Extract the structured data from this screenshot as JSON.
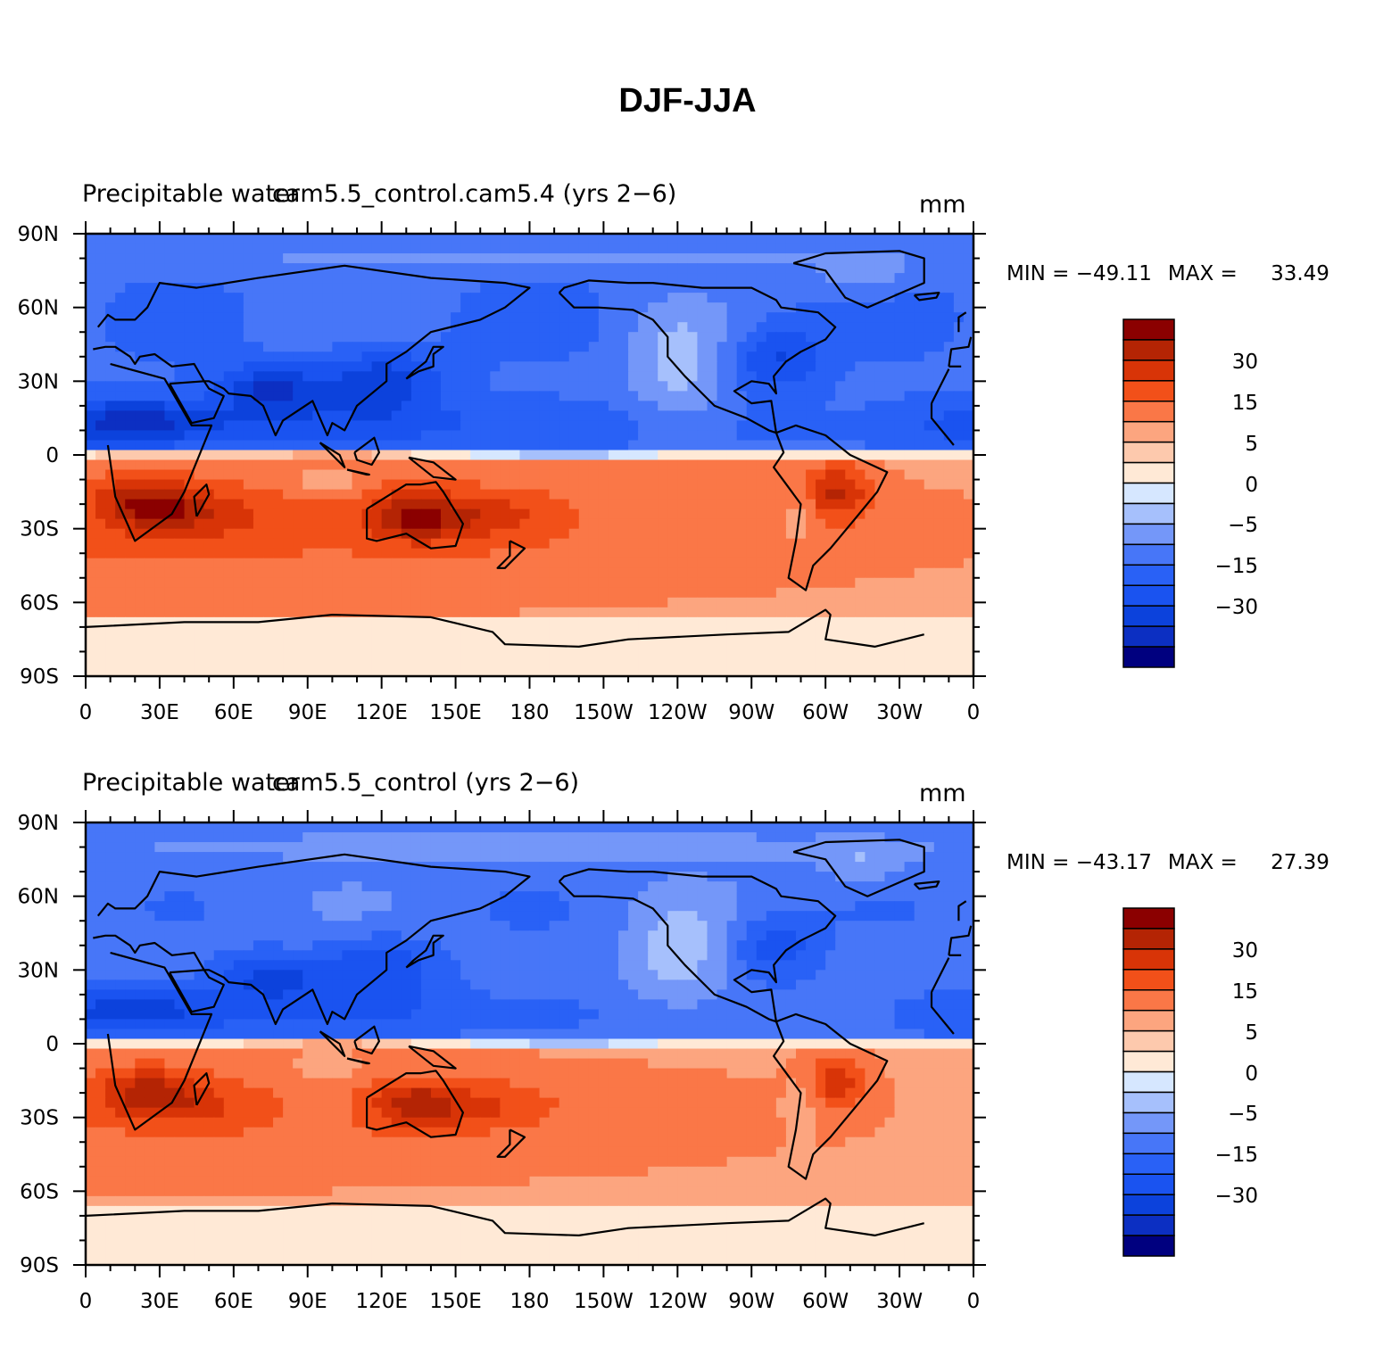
{
  "title": "DJF-JJA",
  "colors": {
    "levels": [
      -40,
      -30,
      -25,
      -20,
      -15,
      -10,
      -5,
      -2,
      0,
      2,
      5,
      10,
      15,
      20,
      25,
      30,
      40
    ],
    "palette": [
      "#00007f",
      "#0c2fc2",
      "#0c42dc",
      "#1a53f0",
      "#2961f6",
      "#4776f8",
      "#7497f9",
      "#a6c0fc",
      "#d6e7ff",
      "#ffe9d6",
      "#fdc9ad",
      "#fca57f",
      "#fa7747",
      "#f25019",
      "#d83407",
      "#b42404",
      "#8b0000"
    ]
  },
  "colorbar": {
    "tick_labels": [
      "30",
      "15",
      "5",
      "0",
      "−5",
      "−15",
      "−30"
    ]
  },
  "axes": {
    "lon_labels": [
      "0",
      "30E",
      "60E",
      "90E",
      "120E",
      "150E",
      "180",
      "150W",
      "120W",
      "90W",
      "60W",
      "30W",
      "0"
    ],
    "lat_labels": [
      "90N",
      "60N",
      "30N",
      "0",
      "30S",
      "60S",
      "90S"
    ]
  },
  "panels": [
    {
      "left_label": "Precipitable water",
      "center_label": "cam5.5_control.cam5.4 (yrs 2−6)",
      "units": "mm",
      "min_label": "MIN = ",
      "min_value": "−49.11",
      "max_label": "MAX = ",
      "max_value": "33.49"
    },
    {
      "left_label": "Precipitable water",
      "center_label": "cam5.5_control (yrs 2−6)",
      "units": "mm",
      "min_label": "MIN = ",
      "min_value": "−43.17",
      "max_label": "MAX = ",
      "max_value": "27.39"
    }
  ]
}
